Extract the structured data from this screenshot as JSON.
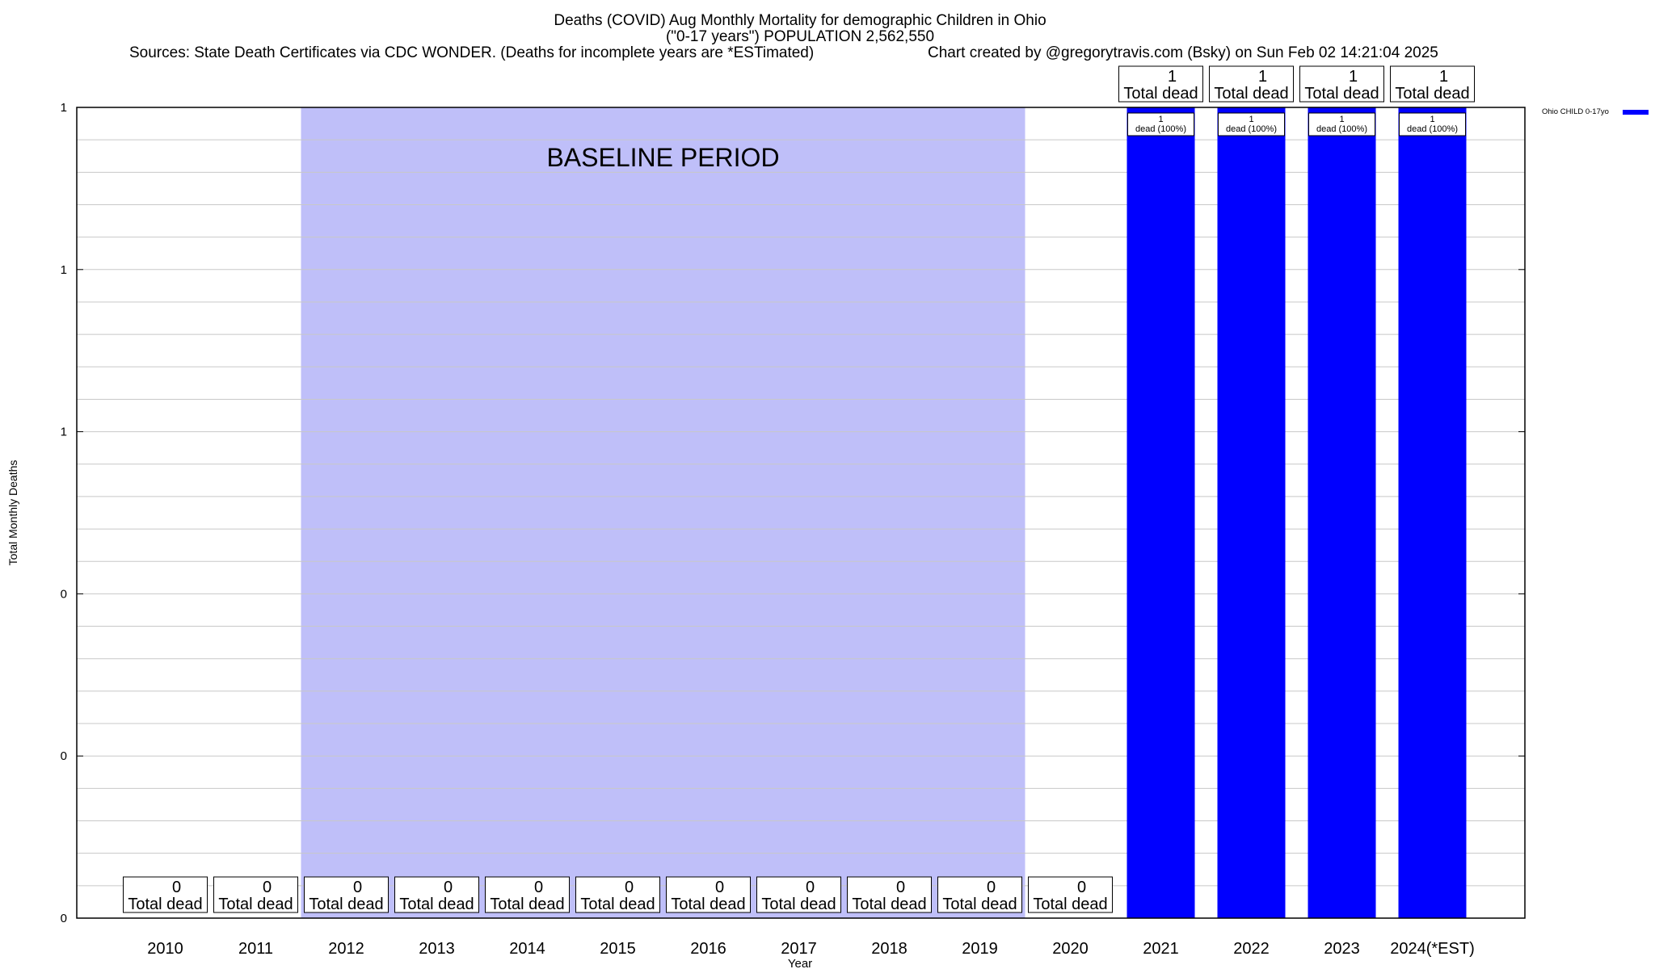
{
  "header": {
    "title_line1": "Deaths (COVID) Aug Monthly Mortality for demographic Children in Ohio",
    "title_line2": "(\"0-17 years\") POPULATION 2,562,550",
    "sources": "Sources: State Death Certificates via CDC WONDER. (Deaths for incomplete years are *ESTimated)",
    "credit": "Chart created by @gregorytravis.com (Bsky) on Sun Feb 02 14:21:04 2025"
  },
  "chart_data": {
    "type": "bar",
    "xlabel": "Year",
    "ylabel": "Total Monthly Deaths",
    "ylim": [
      0,
      1
    ],
    "y_tick_labels": [
      "0",
      "0",
      "0",
      "1",
      "1",
      "1"
    ],
    "categories": [
      "2010",
      "2011",
      "2012",
      "2013",
      "2014",
      "2015",
      "2016",
      "2017",
      "2018",
      "2019",
      "2020",
      "2021",
      "2022",
      "2023",
      "2024(*EST)"
    ],
    "series": [
      {
        "name": "Ohio CHILD 0-17yo",
        "color": "#0000ff",
        "values": [
          0,
          0,
          0,
          0,
          0,
          0,
          0,
          0,
          0,
          0,
          0,
          1,
          1,
          1,
          1
        ]
      }
    ],
    "total_label_value": [
      "0",
      "0",
      "0",
      "0",
      "0",
      "0",
      "0",
      "0",
      "0",
      "0",
      "0",
      "1",
      "1",
      "1",
      "1"
    ],
    "total_label_text": "Total dead",
    "bar_label_count": "1",
    "bar_label_text": "dead (100%)",
    "baseline": {
      "label": "BASELINE PERIOD",
      "from": "2012",
      "to": "2019",
      "color": "#bfbff9"
    },
    "grid": true,
    "legend_position": "top-right"
  }
}
